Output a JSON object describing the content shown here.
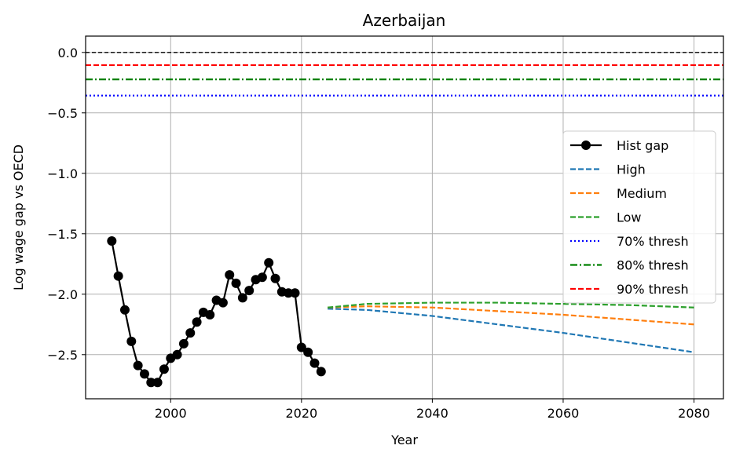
{
  "chart_data": {
    "type": "line",
    "title": "Azerbaijan",
    "xlabel": "Year",
    "ylabel": "Log wage gap vs OECD",
    "xlim": [
      1987,
      2084.5
    ],
    "ylim": [
      -2.865,
      0.135
    ],
    "x_ticks": [
      2000,
      2020,
      2040,
      2060,
      2080
    ],
    "x_tick_labels": [
      "2000",
      "2020",
      "2040",
      "2060",
      "2080"
    ],
    "y_ticks": [
      0.0,
      -0.5,
      -1.0,
      -1.5,
      -2.0,
      -2.5
    ],
    "y_tick_labels": [
      "0.0",
      "−0.5",
      "−1.0",
      "−1.5",
      "−2.0",
      "−2.5"
    ],
    "grid": true,
    "legend_position": "center-right",
    "series": [
      {
        "name": "Hist gap",
        "color": "#000000",
        "style": "solid-marker",
        "x": [
          1991,
          1992,
          1993,
          1994,
          1995,
          1996,
          1997,
          1998,
          1999,
          2000,
          2001,
          2002,
          2003,
          2004,
          2005,
          2006,
          2007,
          2008,
          2009,
          2010,
          2011,
          2012,
          2013,
          2014,
          2015,
          2016,
          2017,
          2018,
          2019,
          2020,
          2021,
          2022,
          2023
        ],
        "y": [
          -1.56,
          -1.85,
          -2.13,
          -2.39,
          -2.59,
          -2.66,
          -2.73,
          -2.73,
          -2.62,
          -2.53,
          -2.5,
          -2.41,
          -2.32,
          -2.23,
          -2.15,
          -2.17,
          -2.05,
          -2.07,
          -1.84,
          -1.91,
          -2.03,
          -1.97,
          -1.88,
          -1.86,
          -1.74,
          -1.87,
          -1.98,
          -1.99,
          -1.99,
          -2.44,
          -2.48,
          -2.57,
          -2.64
        ]
      },
      {
        "name": "High",
        "color": "#1f77b4",
        "style": "dashed",
        "x": [
          2024,
          2030,
          2040,
          2050,
          2060,
          2070,
          2080
        ],
        "y": [
          -2.12,
          -2.13,
          -2.18,
          -2.25,
          -2.32,
          -2.4,
          -2.48
        ]
      },
      {
        "name": "Medium",
        "color": "#ff7f0e",
        "style": "dashed",
        "x": [
          2024,
          2030,
          2040,
          2050,
          2060,
          2070,
          2080
        ],
        "y": [
          -2.11,
          -2.1,
          -2.11,
          -2.14,
          -2.17,
          -2.21,
          -2.25
        ]
      },
      {
        "name": "Low",
        "color": "#2ca02c",
        "style": "dashed",
        "x": [
          2024,
          2030,
          2040,
          2050,
          2060,
          2070,
          2080
        ],
        "y": [
          -2.11,
          -2.08,
          -2.07,
          -2.07,
          -2.08,
          -2.09,
          -2.11
        ]
      }
    ],
    "thresholds": [
      {
        "name": "70% thresh",
        "y": -0.357,
        "color": "#0000ff",
        "style": "dotted"
      },
      {
        "name": "80% thresh",
        "y": -0.223,
        "color": "#008000",
        "style": "dashdot"
      },
      {
        "name": "90% thresh",
        "y": -0.105,
        "color": "#ff0000",
        "style": "dashed"
      }
    ],
    "reference_line": {
      "y": 0.0,
      "color": "#000000",
      "style": "dashed"
    }
  }
}
